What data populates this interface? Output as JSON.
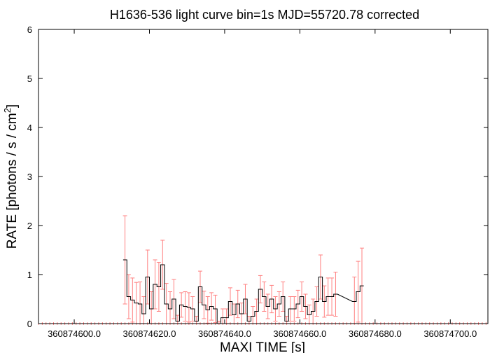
{
  "chart_data": {
    "type": "line",
    "title": "H1636-536 light curve bin=1s MJD=55720.78 corrected",
    "xlabel": "MAXI TIME [s]",
    "ylabel_main": "RATE [photons / s / cm",
    "ylabel_sup": "2",
    "ylabel_close": "]",
    "xlim": [
      360874590.5,
      360874710.0
    ],
    "ylim": [
      0,
      6
    ],
    "x_ticks": [
      360874600,
      360874620,
      360874640,
      360874660,
      360874680,
      360874700
    ],
    "x_tick_labels": [
      "360874600.0",
      "360874620.0",
      "360874640.0",
      "360874660.0",
      "360874680.0",
      "360874700.0"
    ],
    "y_ticks": [
      0,
      1,
      2,
      3,
      4,
      5,
      6
    ],
    "y_tick_labels": [
      "0",
      "1",
      "2",
      "3",
      "4",
      "5",
      "6"
    ],
    "grid": false,
    "series_color": "#000000",
    "error_color": "#ff8080",
    "series": [
      {
        "x": [
          360874613.5,
          360874614.5,
          360874615.5,
          360874616.5,
          360874617.5,
          360874618.5,
          360874619.5,
          360874620.5,
          360874621.5,
          360874622.5,
          360874623.5,
          360874624.5,
          360874625.5,
          360874626.5,
          360874627.5,
          360874628.5,
          360874629.5,
          360874630.5,
          360874631.5,
          360874632.5,
          360874633.5,
          360874634.5,
          360874635.5,
          360874636.5,
          360874637.5,
          360874638.5,
          360874639.5,
          360874640.5,
          360874641.5,
          360874642.5,
          360874643.5,
          360874644.5,
          360874645.5,
          360874646.5,
          360874647.5,
          360874648.5,
          360874649.5,
          360874650.5,
          360874651.5,
          360874652.5,
          360874653.5,
          360874654.5,
          360874655.5,
          360874656.5,
          360874657.5,
          360874658.5,
          360874659.5,
          360874660.5,
          360874661.5,
          360874662.5,
          360874663.5,
          360874664.5,
          360874665.5,
          360874666.5,
          360874667.5,
          360874668.5,
          360874669.5,
          360874674.5,
          360874675.5,
          360874676.5
        ],
        "y": [
          1.3,
          0.55,
          0.48,
          0.42,
          0.4,
          0.2,
          0.95,
          0.3,
          0.8,
          0.75,
          1.2,
          0.4,
          0.3,
          0.5,
          0.05,
          0.38,
          0.35,
          0.33,
          0.3,
          0.05,
          0.75,
          0.38,
          0.28,
          0.35,
          0.3,
          0.0,
          0.12,
          0.12,
          0.45,
          0.18,
          0.4,
          0.2,
          0.5,
          0.05,
          0.15,
          0.25,
          0.7,
          0.55,
          0.35,
          0.5,
          0.3,
          0.4,
          0.55,
          0.05,
          0.3,
          0.3,
          0.4,
          0.55,
          0.35,
          0.18,
          0.25,
          0.45,
          0.95,
          0.45,
          0.55,
          0.55,
          0.6,
          0.45,
          0.65,
          0.77
        ],
        "yerr": [
          0.9,
          0.45,
          0.45,
          0.42,
          0.45,
          0.35,
          0.55,
          0.35,
          0.5,
          0.5,
          0.5,
          0.42,
          0.35,
          0.4,
          0.12,
          0.25,
          0.3,
          0.3,
          0.25,
          0.1,
          0.32,
          0.28,
          0.27,
          0.28,
          0.28,
          0.05,
          0.18,
          0.18,
          0.28,
          0.22,
          0.28,
          0.22,
          0.3,
          0.1,
          0.2,
          0.25,
          0.28,
          0.3,
          0.25,
          0.28,
          0.25,
          0.25,
          0.3,
          0.1,
          0.25,
          0.25,
          0.28,
          0.3,
          0.25,
          0.2,
          0.25,
          0.3,
          0.45,
          0.32,
          0.38,
          0.38,
          0.45,
          0.5,
          0.62,
          0.77
        ]
      }
    ],
    "zero_rows_x_start": 360874590.5,
    "zero_rows_x_end": 360874709.5
  }
}
